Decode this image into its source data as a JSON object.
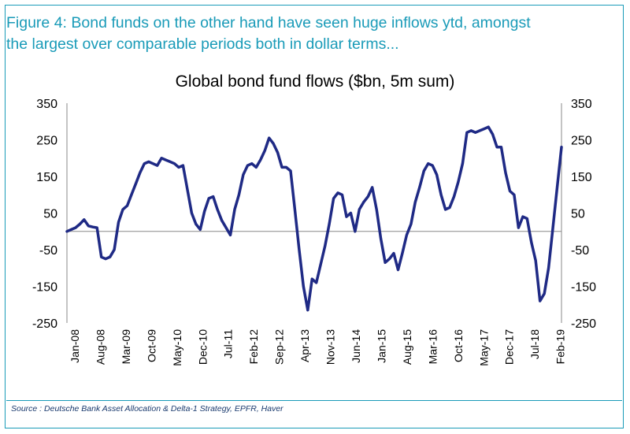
{
  "figure_title": "Figure 4: Bond funds on the other hand have seen huge inflows ytd, amongst\nthe largest over comparable periods both in dollar terms...",
  "source": "Source : Deutsche Bank Asset Allocation & Delta-1 Strategy, EPFR, Haver",
  "colors": {
    "title": "#1a9bb8",
    "series": "#1f2a85",
    "frame": "#1a9bb8"
  },
  "chart_data": {
    "type": "line",
    "title": "Global bond fund flows ($bn, 5m sum)",
    "xlabel": "",
    "ylabel": "",
    "ylim": [
      -250,
      350
    ],
    "yticks": [
      350,
      250,
      150,
      50,
      -50,
      -150,
      -250
    ],
    "secondary_axis": true,
    "grid": false,
    "legend": "none",
    "x_tick_labels": [
      "Jan-08",
      "Aug-08",
      "Mar-09",
      "Oct-09",
      "May-10",
      "Dec-10",
      "Jul-11",
      "Feb-12",
      "Sep-12",
      "Apr-13",
      "Nov-13",
      "Jun-14",
      "Jan-15",
      "Aug-15",
      "Mar-16",
      "Oct-16",
      "May-17",
      "Dec-17",
      "Jul-18",
      "Feb-19"
    ],
    "series": [
      {
        "values": [
          0,
          5,
          10,
          20,
          32,
          15,
          12,
          10,
          -70,
          -75,
          -70,
          -50,
          25,
          60,
          70,
          100,
          130,
          160,
          185,
          190,
          185,
          180,
          200,
          195,
          190,
          185,
          175,
          180,
          115,
          50,
          20,
          5,
          55,
          90,
          95,
          60,
          30,
          10,
          -10,
          60,
          100,
          155,
          180,
          185,
          175,
          195,
          220,
          255,
          240,
          215,
          175,
          175,
          165,
          60,
          -50,
          -150,
          -215,
          -130,
          -140,
          -90,
          -40,
          20,
          90,
          105,
          100,
          40,
          50,
          0,
          60,
          80,
          95,
          120,
          60,
          -20,
          -85,
          -75,
          -60,
          -105,
          -60,
          -10,
          20,
          80,
          120,
          165,
          185,
          180,
          155,
          100,
          60,
          65,
          95,
          135,
          185,
          270,
          275,
          270,
          275,
          280,
          285,
          265,
          230,
          230,
          160,
          110,
          100,
          10,
          40,
          35,
          -30,
          -80,
          -190,
          -170,
          -100,
          10,
          120,
          230
        ]
      }
    ]
  }
}
